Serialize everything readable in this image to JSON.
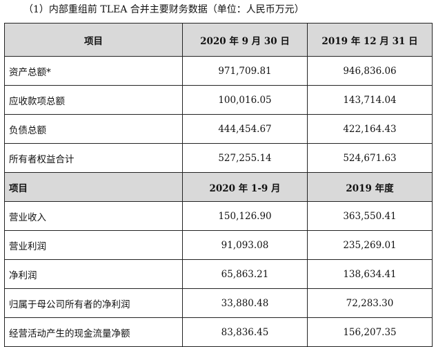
{
  "caption": "（1）内部重组前 TLEA 合并主要财务数据（单位：人民币万元）",
  "table1": {
    "headers": [
      "项目",
      "2020 年 9 月 30 日",
      "2019 年 12 月 31 日"
    ],
    "rows": [
      {
        "label": "资产总额*",
        "v1": "971,709.81",
        "v2": "946,836.06"
      },
      {
        "label": "应收款项总额",
        "v1": "100,016.05",
        "v2": "143,714.04"
      },
      {
        "label": "负债总额",
        "v1": "444,454.67",
        "v2": "422,164.43"
      },
      {
        "label": "所有者权益合计",
        "v1": "527,255.14",
        "v2": "524,671.63"
      }
    ]
  },
  "table2": {
    "headers": [
      "项目",
      "2020 年 1-9 月",
      "2019 年度"
    ],
    "rows": [
      {
        "label": "营业收入",
        "v1": "150,126.90",
        "v2": "363,550.41"
      },
      {
        "label": "营业利润",
        "v1": "91,093.08",
        "v2": "235,269.01"
      },
      {
        "label": "净利润",
        "v1": "65,863.21",
        "v2": "138,634.41"
      },
      {
        "label": "归属于母公司所有者的净利润",
        "v1": "33,880.48",
        "v2": "72,283.30"
      },
      {
        "label": "经营活动产生的现金流量净额",
        "v1": "83,836.45",
        "v2": "156,207.35"
      }
    ]
  }
}
